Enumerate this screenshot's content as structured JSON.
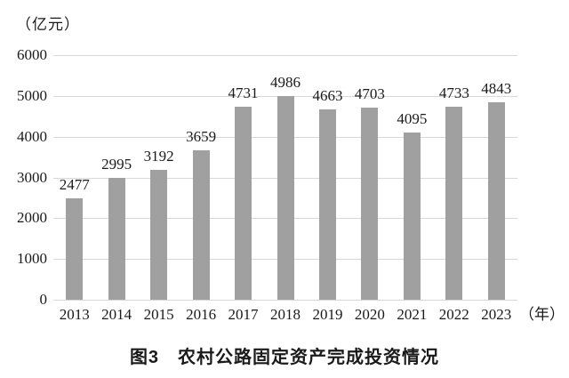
{
  "figure": {
    "unit_label": "（亿元）",
    "year_suffix": "（年）",
    "caption": "图3　农村公路固定资产完成投资情况"
  },
  "chart_data": {
    "type": "bar",
    "title": "图3　农村公路固定资产完成投资情况",
    "ylabel": "（亿元）",
    "xlabel": "（年）",
    "categories": [
      "2013",
      "2014",
      "2015",
      "2016",
      "2017",
      "2018",
      "2019",
      "2020",
      "2021",
      "2022",
      "2023"
    ],
    "values": [
      2477,
      2995,
      3192,
      3659,
      4731,
      4986,
      4663,
      4703,
      4095,
      4733,
      4843
    ],
    "ylim": [
      0,
      6000
    ],
    "yticks": [
      0,
      1000,
      2000,
      3000,
      4000,
      5000,
      6000
    ],
    "grid": true,
    "legend_position": "none",
    "data_labels": true,
    "bar_color": "#a0a0a0",
    "grid_color": "#d8d8d8",
    "text_color": "#1a1a1a",
    "background_color": "#ffffff"
  }
}
